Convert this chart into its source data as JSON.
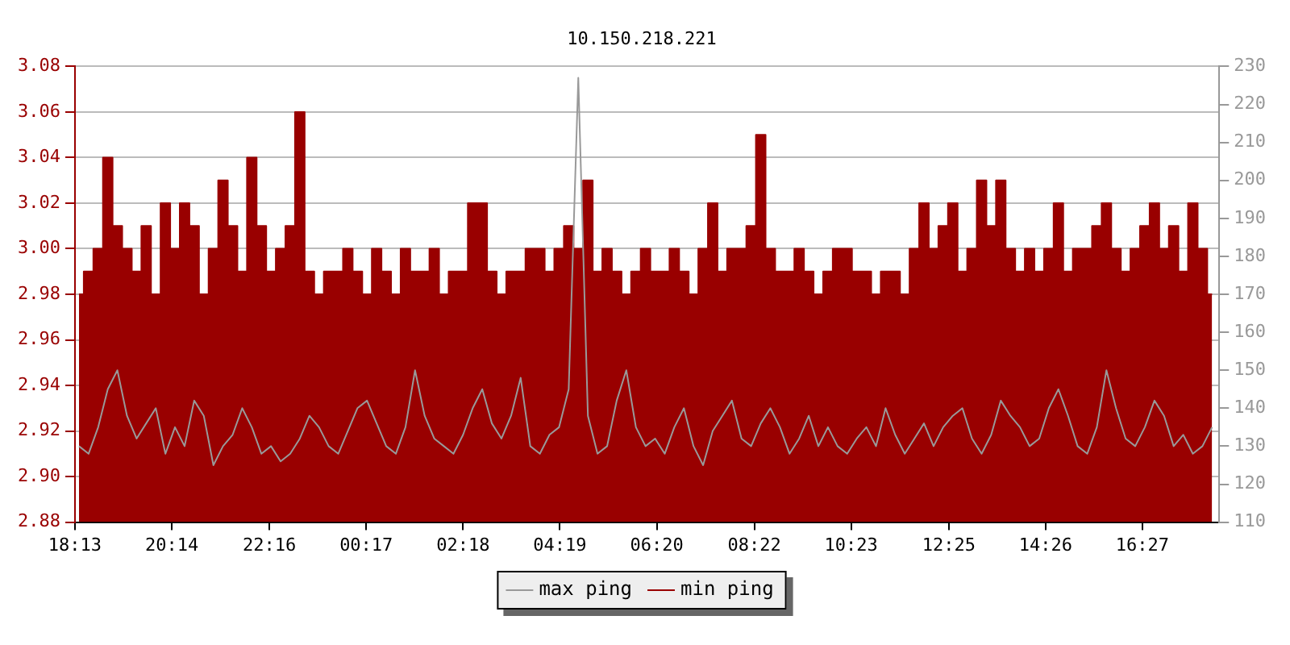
{
  "chart_data": {
    "type": "area",
    "title": "10.150.218.221",
    "x": [
      "--01-01T18:18",
      "--01-01T18:30",
      "--01-01T18:42",
      "--01-01T18:54",
      "--01-01T19:06",
      "--01-01T19:18",
      "--01-01T19:30",
      "--01-01T19:42",
      "--01-01T19:54",
      "--01-01T20:06",
      "--01-01T20:18",
      "--01-01T20:30",
      "--01-01T20:42",
      "--01-01T20:54",
      "--01-01T21:06",
      "--01-01T21:18",
      "--01-01T21:30",
      "--01-01T21:42",
      "--01-01T21:54",
      "--01-01T22:06",
      "--01-01T22:18",
      "--01-01T22:30",
      "--01-01T22:42",
      "--01-01T22:54",
      "--01-01T23:06",
      "--01-01T23:18",
      "--01-01T23:30",
      "--01-01T23:42",
      "--01-01T23:54",
      "--01-02T00:06",
      "--01-02T00:18",
      "--01-02T00:30",
      "--01-02T00:42",
      "--01-02T00:54",
      "--01-02T01:06",
      "--01-02T01:18",
      "--01-02T01:30",
      "--01-02T01:42",
      "--01-02T01:54",
      "--01-02T02:06",
      "--01-02T02:18",
      "--01-02T02:30",
      "--01-02T02:42",
      "--01-02T02:54",
      "--01-02T03:06",
      "--01-02T03:18",
      "--01-02T03:30",
      "--01-02T03:42",
      "--01-02T03:54",
      "--01-02T04:06",
      "--01-02T04:18",
      "--01-02T04:30",
      "--01-02T04:42",
      "--01-02T04:54",
      "--01-02T05:06",
      "--01-02T05:18",
      "--01-02T05:30",
      "--01-02T05:42",
      "--01-02T05:54",
      "--01-02T06:06",
      "--01-02T06:18",
      "--01-02T06:30",
      "--01-02T06:42",
      "--01-02T06:54",
      "--01-02T07:06",
      "--01-02T07:18",
      "--01-02T07:30",
      "--01-02T07:42",
      "--01-02T07:54",
      "--01-02T08:06",
      "--01-02T08:18",
      "--01-02T08:30",
      "--01-02T08:42",
      "--01-02T08:54",
      "--01-02T09:06",
      "--01-02T09:18",
      "--01-02T09:30",
      "--01-02T09:42",
      "--01-02T09:54",
      "--01-02T10:06",
      "--01-02T10:18",
      "--01-02T10:30",
      "--01-02T10:42",
      "--01-02T10:54",
      "--01-02T11:06",
      "--01-02T11:18",
      "--01-02T11:30",
      "--01-02T11:42",
      "--01-02T11:54",
      "--01-02T12:06",
      "--01-02T12:18",
      "--01-02T12:30",
      "--01-02T12:42",
      "--01-02T12:54",
      "--01-02T13:06",
      "--01-02T13:18",
      "--01-02T13:30",
      "--01-02T13:42",
      "--01-02T13:54",
      "--01-02T14:06",
      "--01-02T14:18",
      "--01-02T14:30",
      "--01-02T14:42",
      "--01-02T14:54",
      "--01-02T15:06",
      "--01-02T15:18",
      "--01-02T15:30",
      "--01-02T15:42",
      "--01-02T15:54",
      "--01-02T16:06",
      "--01-02T16:18",
      "--01-02T16:30",
      "--01-02T16:42",
      "--01-02T16:54",
      "--01-02T17:06",
      "--01-02T17:18",
      "--01-02T17:30",
      "--01-02T17:42",
      "--01-02T17:54"
    ],
    "series": [
      {
        "name": "min ping",
        "color": "#990000",
        "values": [
          2.98,
          2.99,
          3.0,
          3.04,
          3.01,
          3.0,
          2.99,
          3.01,
          2.98,
          3.02,
          3.0,
          3.02,
          3.01,
          2.98,
          3.0,
          3.03,
          3.01,
          2.99,
          3.04,
          3.01,
          2.99,
          3.0,
          3.01,
          3.06,
          2.99,
          2.98,
          2.99,
          2.99,
          3.0,
          2.99,
          2.98,
          3.0,
          2.99,
          2.98,
          3.0,
          2.99,
          2.99,
          3.0,
          2.98,
          2.99,
          2.99,
          3.02,
          3.02,
          2.99,
          2.98,
          2.99,
          2.99,
          3.0,
          3.0,
          2.99,
          3.0,
          3.01,
          3.0,
          3.03,
          2.99,
          3.0,
          2.99,
          2.98,
          2.99,
          3.0,
          2.99,
          2.99,
          3.0,
          2.99,
          2.98,
          3.0,
          3.02,
          2.99,
          3.0,
          3.0,
          3.01,
          3.05,
          3.0,
          2.99,
          2.99,
          3.0,
          2.99,
          2.98,
          2.99,
          3.0,
          3.0,
          2.99,
          2.99,
          2.98,
          2.99,
          2.99,
          2.98,
          3.0,
          3.02,
          3.0,
          3.01,
          3.02,
          2.99,
          3.0,
          3.03,
          3.01,
          3.03,
          3.0,
          2.99,
          3.0,
          2.99,
          3.0,
          3.02,
          2.99,
          3.0,
          3.0,
          3.01,
          3.02,
          3.0,
          2.99,
          3.0,
          3.01,
          3.02,
          3.0,
          3.01,
          2.99,
          3.02,
          3.0,
          2.98
        ]
      },
      {
        "name": "max ping",
        "type": "line",
        "axis": "y2",
        "color": "#999999",
        "values": [
          130,
          128,
          135,
          145,
          150,
          138,
          132,
          136,
          140,
          128,
          135,
          130,
          142,
          138,
          125,
          130,
          133,
          140,
          135,
          128,
          130,
          126,
          128,
          132,
          138,
          135,
          130,
          128,
          134,
          140,
          142,
          136,
          130,
          128,
          135,
          150,
          138,
          132,
          130,
          128,
          133,
          140,
          145,
          136,
          132,
          138,
          148,
          130,
          128,
          133,
          135,
          145,
          227,
          138,
          128,
          130,
          142,
          150,
          135,
          130,
          132,
          128,
          135,
          140,
          130,
          125,
          134,
          138,
          142,
          132,
          130,
          136,
          140,
          135,
          128,
          132,
          138,
          130,
          135,
          130,
          128,
          132,
          135,
          130,
          140,
          133,
          128,
          132,
          136,
          130,
          135,
          138,
          140,
          132,
          128,
          133,
          142,
          138,
          135,
          130,
          132,
          140,
          145,
          138,
          130,
          128,
          135,
          150,
          140,
          132,
          130,
          135,
          142,
          138,
          130,
          133,
          128,
          130,
          135
        ]
      }
    ],
    "xlim": [
      "--01-01T18:13",
      "--01-02T18:03"
    ],
    "xticks": [
      {
        "value": "--01-01T18:13",
        "label": "18:13"
      },
      {
        "value": "--01-01T20:14",
        "label": "20:14"
      },
      {
        "value": "--01-01T22:16",
        "label": "22:16"
      },
      {
        "value": "--01-02T00:17",
        "label": "00:17"
      },
      {
        "value": "--01-02T02:18",
        "label": "02:18"
      },
      {
        "value": "--01-02T04:19",
        "label": "04:19"
      },
      {
        "value": "--01-02T06:20",
        "label": "06:20"
      },
      {
        "value": "--01-02T08:22",
        "label": "08:22"
      },
      {
        "value": "--01-02T10:23",
        "label": "10:23"
      },
      {
        "value": "--01-02T12:25",
        "label": "12:25"
      },
      {
        "value": "--01-02T14:26",
        "label": "14:26"
      },
      {
        "value": "--01-02T16:27",
        "label": "16:27"
      }
    ],
    "ylim": [
      2.88,
      3.08
    ],
    "yticks": [
      {
        "value": 2.88,
        "label": "2.88"
      },
      {
        "value": 2.9,
        "label": "2.90"
      },
      {
        "value": 2.92,
        "label": "2.92"
      },
      {
        "value": 2.94,
        "label": "2.94"
      },
      {
        "value": 2.96,
        "label": "2.96"
      },
      {
        "value": 2.98,
        "label": "2.98"
      },
      {
        "value": 3.0,
        "label": "3.00"
      },
      {
        "value": 3.02,
        "label": "3.02"
      },
      {
        "value": 3.04,
        "label": "3.04"
      },
      {
        "value": 3.06,
        "label": "3.06"
      },
      {
        "value": 3.08,
        "label": "3.08"
      }
    ],
    "y2lim": [
      110,
      230
    ],
    "y2ticks": [
      110,
      120,
      130,
      140,
      150,
      160,
      170,
      180,
      190,
      200,
      210,
      220,
      230
    ],
    "grid": "y",
    "legend": "bottom",
    "marker": "none"
  }
}
